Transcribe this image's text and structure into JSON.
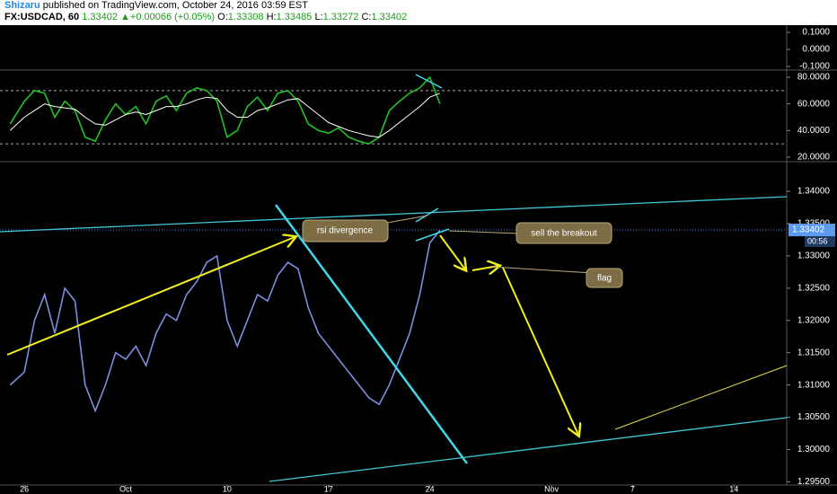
{
  "header": {
    "author": "Shizaru",
    "published": "published on TradingView.com, October 24, 2016 03:59 EST",
    "symbol": "FX:USDCAD, 60",
    "last": "1.33402",
    "arrow": "▲",
    "change": "+0.00066 (+0.05%)",
    "open_label": "O:",
    "open": "1.33308",
    "high_label": "H:",
    "high": "1.33485",
    "low_label": "L:",
    "low": "1.33272",
    "close_label": "C:",
    "close": "1.33402"
  },
  "chart_data": [
    {
      "type": "line",
      "ylim": [
        -0.121,
        0.142
      ],
      "yticks": [
        {
          "value": 0.1,
          "label": "0.1000"
        },
        {
          "value": 0,
          "label": "0.0000"
        },
        {
          "value": -0.1,
          "label": "-0.1000"
        }
      ]
    },
    {
      "type": "line",
      "xlim": [
        -1.2,
        37.6
      ],
      "ylim": [
        16.6,
        85.4
      ],
      "yticks": [
        {
          "value": 20,
          "label": "20.0000"
        },
        {
          "value": 40,
          "label": "40.0000"
        },
        {
          "value": 60,
          "label": "60.0000"
        },
        {
          "value": 80,
          "label": "80.0000"
        }
      ],
      "levels": [
        30,
        70
      ],
      "x": [
        -0.7,
        0,
        0.5,
        1,
        1.5,
        2,
        2.5,
        3,
        3.5,
        4,
        4.5,
        5,
        5.5,
        6,
        6.5,
        7,
        7.5,
        8,
        8.5,
        9,
        9.5,
        10,
        10.5,
        11,
        11.5,
        12,
        12.5,
        13,
        13.5,
        14,
        14.5,
        15,
        15.5,
        16,
        16.5,
        17,
        17.5,
        18,
        18.5,
        19,
        19.5,
        20,
        20.5
      ],
      "series": [
        {
          "color": "#22c322",
          "values": [
            45,
            62,
            70,
            68,
            50,
            62,
            55,
            35,
            32,
            48,
            60,
            52,
            58,
            45,
            62,
            66,
            55,
            68,
            72,
            70,
            62,
            35,
            40,
            58,
            65,
            55,
            68,
            70,
            62,
            45,
            40,
            38,
            42,
            35,
            32,
            30,
            35,
            55,
            62,
            68,
            72,
            80,
            60
          ]
        },
        {
          "color": "#ffffff",
          "values": [
            40,
            50,
            55,
            60,
            58,
            57,
            56,
            50,
            45,
            44,
            48,
            52,
            54,
            52,
            55,
            58,
            58,
            60,
            63,
            65,
            64,
            55,
            50,
            50,
            55,
            57,
            60,
            63,
            64,
            58,
            52,
            46,
            43,
            40,
            38,
            36,
            35,
            40,
            46,
            52,
            58,
            65,
            68
          ]
        }
      ]
    },
    {
      "type": "line",
      "xlim": [
        -1.2,
        37.6
      ],
      "ylim": [
        1.2945,
        1.3446
      ],
      "yticks": [
        {
          "value": 1.295,
          "label": "1.29500"
        },
        {
          "value": 1.3,
          "label": "1.30000"
        },
        {
          "value": 1.305,
          "label": "1.30500"
        },
        {
          "value": 1.31,
          "label": "1.31000"
        },
        {
          "value": 1.315,
          "label": "1.31500"
        },
        {
          "value": 1.32,
          "label": "1.32000"
        },
        {
          "value": 1.325,
          "label": "1.32500"
        },
        {
          "value": 1.33,
          "label": "1.33000"
        },
        {
          "value": 1.335,
          "label": "1.33500"
        },
        {
          "value": 1.34,
          "label": "1.34000"
        }
      ],
      "xticks": [
        {
          "value": 0,
          "label": "26"
        },
        {
          "value": 5,
          "label": "Oct"
        },
        {
          "value": 10,
          "label": "10"
        },
        {
          "value": 15,
          "label": "17"
        },
        {
          "value": 20,
          "label": "24"
        },
        {
          "value": 26,
          "label": "Nov"
        },
        {
          "value": 30,
          "label": "7"
        },
        {
          "value": 35,
          "label": "14"
        }
      ],
      "x": [
        -0.7,
        0,
        0.5,
        1,
        1.5,
        2,
        2.5,
        3,
        3.5,
        4,
        4.5,
        5,
        5.5,
        6,
        6.5,
        7,
        7.5,
        8,
        8.5,
        9,
        9.5,
        10,
        10.5,
        11,
        11.5,
        12,
        12.5,
        13,
        13.5,
        14,
        14.5,
        15,
        15.5,
        16,
        16.5,
        17,
        17.5,
        18,
        18.5,
        19,
        19.5,
        20,
        20.5
      ],
      "series": [
        {
          "color": "#7b8ee0",
          "values": [
            1.31,
            1.312,
            1.32,
            1.324,
            1.318,
            1.325,
            1.323,
            1.31,
            1.306,
            1.31,
            1.315,
            1.314,
            1.316,
            1.313,
            1.318,
            1.321,
            1.32,
            1.324,
            1.326,
            1.329,
            1.33,
            1.32,
            1.316,
            1.32,
            1.324,
            1.323,
            1.327,
            1.329,
            1.328,
            1.322,
            1.318,
            1.316,
            1.314,
            1.312,
            1.31,
            1.308,
            1.307,
            1.31,
            1.314,
            1.318,
            1.324,
            1.332,
            1.334
          ]
        }
      ],
      "last_price": 1.33402,
      "countdown": "00:56",
      "annotations": [
        "rsi divergence",
        "sell the breakout",
        "flag"
      ]
    }
  ]
}
